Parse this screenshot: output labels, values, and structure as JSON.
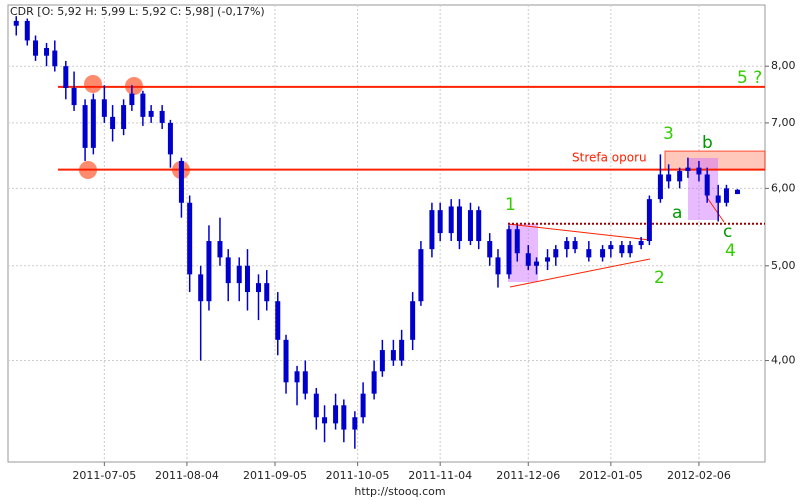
{
  "chart_data": {
    "type": "candlestick",
    "title": "CDR [O: 5,92  H: 5,99  L: 5,92  C: 5,98] (-0,17%)",
    "source": "http://stooq.com",
    "color": "#0000cc",
    "log_scale": true,
    "grid": true,
    "xlim": [
      "2011-05-31",
      "2012-03-01"
    ],
    "xticks": [
      "2011-07-05",
      "2011-08-04",
      "2011-09-05",
      "2011-10-05",
      "2011-11-04",
      "2011-12-06",
      "2012-01-05",
      "2012-02-06"
    ],
    "ylim": [
      3.15,
      9.24
    ],
    "yticks": [
      {
        "value": 4,
        "label": "4,00"
      },
      {
        "value": 5,
        "label": "5,00"
      },
      {
        "value": 6,
        "label": "6,00"
      },
      {
        "value": 7,
        "label": "7,00"
      },
      {
        "value": 8,
        "label": "8,00"
      }
    ],
    "levels": [
      7.62,
      6.27
    ],
    "level_color": "#ff2200",
    "support": 5.52,
    "zone": [
      6.27,
      6.55
    ],
    "annotations": [
      "Strefa oporu",
      "1",
      "2",
      "3",
      "4",
      "5 ?",
      "a",
      "b",
      "c"
    ],
    "x": [
      "2011-06-03",
      "2011-06-07",
      "2011-06-10",
      "2011-06-14",
      "2011-06-17",
      "2011-06-21",
      "2011-06-24",
      "2011-06-28",
      "2011-07-01",
      "2011-07-05",
      "2011-07-08",
      "2011-07-12",
      "2011-07-15",
      "2011-07-19",
      "2011-07-22",
      "2011-07-26",
      "2011-07-29",
      "2011-08-02",
      "2011-08-05",
      "2011-08-09",
      "2011-08-12",
      "2011-08-16",
      "2011-08-19",
      "2011-08-23",
      "2011-08-26",
      "2011-08-30",
      "2011-09-02",
      "2011-09-06",
      "2011-09-09",
      "2011-09-13",
      "2011-09-16",
      "2011-09-20",
      "2011-09-23",
      "2011-09-27",
      "2011-09-30",
      "2011-10-04",
      "2011-10-07",
      "2011-10-11",
      "2011-10-14",
      "2011-10-18",
      "2011-10-21",
      "2011-10-25",
      "2011-10-28",
      "2011-11-01",
      "2011-11-04",
      "2011-11-08",
      "2011-11-11",
      "2011-11-15",
      "2011-11-18",
      "2011-11-22",
      "2011-11-25",
      "2011-11-29",
      "2011-12-02",
      "2011-12-06",
      "2011-12-09",
      "2011-12-13",
      "2011-12-16",
      "2011-12-20",
      "2011-12-23",
      "2011-12-28",
      "2012-01-02",
      "2012-01-05",
      "2012-01-09",
      "2012-01-12",
      "2012-01-16",
      "2012-01-19",
      "2012-01-23",
      "2012-01-26",
      "2012-01-30",
      "2012-02-02",
      "2012-02-06",
      "2012-02-09",
      "2012-02-13",
      "2012-02-16",
      "2012-02-20"
    ],
    "open": [
      8.8,
      8.9,
      8.5,
      8.2,
      8.3,
      8.0,
      7.6,
      7.3,
      6.6,
      7.4,
      7.1,
      6.9,
      7.3,
      7.5,
      7.1,
      7.2,
      7.0,
      6.4,
      5.8,
      4.9,
      4.6,
      5.3,
      5.1,
      4.8,
      5.0,
      4.7,
      4.8,
      4.6,
      4.2,
      3.8,
      3.9,
      3.7,
      3.5,
      3.45,
      3.6,
      3.4,
      3.5,
      3.7,
      3.9,
      4.1,
      4.0,
      4.2,
      4.6,
      5.2,
      5.7,
      5.4,
      5.75,
      5.3,
      5.7,
      5.3,
      5.1,
      4.9,
      5.45,
      5.15,
      5.0,
      5.05,
      5.1,
      5.2,
      5.3,
      5.2,
      5.1,
      5.2,
      5.25,
      5.15,
      5.25,
      5.3,
      5.85,
      6.2,
      6.1,
      6.25,
      6.3,
      6.2,
      5.9,
      5.8,
      5.92
    ],
    "high": [
      9.0,
      8.95,
      8.6,
      8.45,
      8.5,
      8.1,
      7.9,
      7.4,
      7.5,
      7.65,
      7.3,
      7.4,
      7.65,
      7.55,
      7.3,
      7.3,
      7.05,
      6.45,
      5.9,
      5.0,
      5.5,
      5.6,
      5.2,
      5.1,
      5.2,
      4.9,
      4.95,
      4.7,
      4.25,
      3.95,
      4.0,
      3.75,
      3.6,
      3.7,
      3.65,
      3.55,
      3.8,
      4.0,
      4.2,
      4.2,
      4.3,
      4.7,
      5.3,
      5.8,
      5.8,
      5.85,
      5.85,
      5.8,
      5.75,
      5.4,
      5.2,
      5.5,
      5.5,
      5.25,
      5.1,
      5.2,
      5.25,
      5.35,
      5.35,
      5.3,
      5.25,
      5.3,
      5.3,
      5.3,
      5.35,
      5.9,
      6.5,
      6.35,
      6.3,
      6.45,
      6.4,
      6.3,
      6.05,
      6.05,
      5.99
    ],
    "low": [
      8.6,
      8.4,
      8.1,
      8.0,
      7.9,
      7.4,
      7.2,
      6.4,
      6.5,
      7.0,
      6.7,
      6.8,
      7.2,
      6.95,
      7.0,
      6.9,
      6.3,
      5.6,
      4.7,
      4.0,
      4.5,
      5.0,
      4.6,
      4.6,
      4.5,
      4.4,
      4.5,
      4.05,
      3.7,
      3.6,
      3.65,
      3.4,
      3.3,
      3.4,
      3.3,
      3.25,
      3.45,
      3.65,
      3.85,
      3.95,
      3.95,
      4.1,
      4.55,
      5.1,
      5.3,
      5.3,
      5.2,
      5.25,
      5.2,
      5.0,
      4.75,
      4.85,
      5.05,
      4.95,
      4.9,
      4.95,
      5.0,
      5.1,
      5.15,
      5.05,
      5.05,
      5.1,
      5.1,
      5.1,
      5.2,
      5.25,
      5.8,
      6.0,
      6.0,
      6.15,
      6.1,
      5.8,
      5.55,
      5.75,
      5.92
    ],
    "close": [
      8.9,
      8.5,
      8.2,
      8.35,
      8.0,
      7.6,
      7.3,
      6.6,
      7.4,
      7.1,
      6.9,
      7.3,
      7.5,
      7.1,
      7.2,
      7.0,
      6.5,
      5.8,
      4.9,
      4.6,
      5.3,
      5.1,
      4.8,
      5.0,
      4.7,
      4.8,
      4.6,
      4.2,
      3.8,
      3.9,
      3.7,
      3.5,
      3.45,
      3.6,
      3.4,
      3.5,
      3.7,
      3.9,
      4.1,
      4.0,
      4.2,
      4.6,
      5.2,
      5.7,
      5.4,
      5.75,
      5.3,
      5.7,
      5.3,
      5.1,
      4.9,
      5.45,
      5.15,
      5.0,
      5.05,
      5.1,
      5.2,
      5.3,
      5.2,
      5.1,
      5.2,
      5.25,
      5.15,
      5.25,
      5.3,
      5.85,
      6.2,
      6.1,
      6.25,
      6.3,
      6.2,
      5.9,
      5.8,
      6.0,
      5.98
    ]
  }
}
